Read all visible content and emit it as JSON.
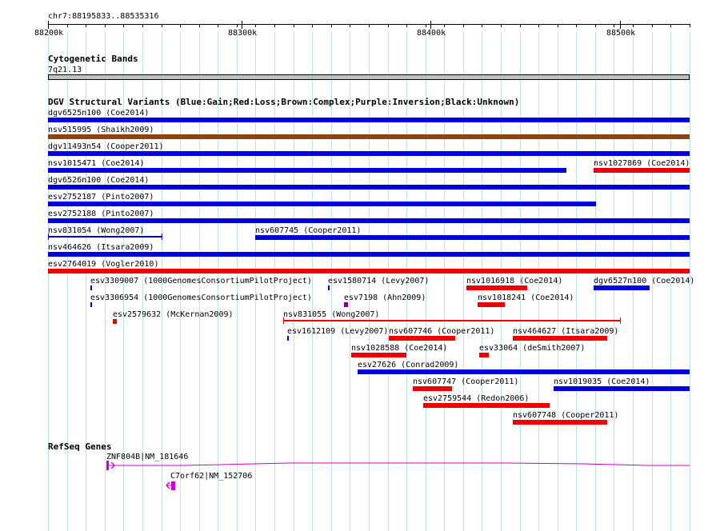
{
  "locus": "chr7:88195833..88535316",
  "ruler": {
    "labels": [
      "88200k",
      "88300k",
      "88400k",
      "88500k"
    ]
  },
  "cytoband_track": {
    "title": "Cytogenetic Bands",
    "band_label": "7q21.13"
  },
  "dgv_track": {
    "title": "DGV Structural Variants (Blue:Gain;Red:Loss;Brown:Complex;Purple:Inversion;Black:Unknown)",
    "colors": {
      "gain": "#0000dd",
      "loss": "#ee0000",
      "complex": "#8b4513",
      "inversion": "#800080",
      "unknown": "#000000"
    },
    "features": [
      {
        "label": "dgv6525n100 (Coe2014)",
        "type": "gain"
      },
      {
        "label": "nsv515995 (Shaikh2009)",
        "type": "complex"
      },
      {
        "label": "dgv11493n54 (Cooper2011)",
        "type": "gain"
      },
      {
        "label": "nsv1015471 (Coe2014)",
        "type": "gain"
      },
      {
        "label": "nsv1027869 (Coe2014)",
        "type": "loss"
      },
      {
        "label": "dgv6526n100 (Coe2014)",
        "type": "gain"
      },
      {
        "label": "esv2752187 (Pinto2007)",
        "type": "gain"
      },
      {
        "label": "esv2752188 (Pinto2007)",
        "type": "gain"
      },
      {
        "label": "nsv831054 (Wong2007)",
        "type": "gain"
      },
      {
        "label": "nsv607745 (Cooper2011)",
        "type": "gain"
      },
      {
        "label": "nsv464626 (Itsara2009)",
        "type": "gain"
      },
      {
        "label": "esv2764019 (Vogler2010)",
        "type": "loss"
      },
      {
        "label": "esv3309007 (1000GenomesConsortiumPilotProject)",
        "type": "gain"
      },
      {
        "label": "esv1580714 (Levy2007)",
        "type": "gain"
      },
      {
        "label": "nsv1016918 (Coe2014)",
        "type": "loss"
      },
      {
        "label": "dgv6527n100 (Coe2014)",
        "type": "gain"
      },
      {
        "label": "esv3306954 (1000GenomesConsortiumPilotProject)",
        "type": "gain"
      },
      {
        "label": "esv7198 (Ahn2009)",
        "type": "inversion"
      },
      {
        "label": "nsv1018241 (Coe2014)",
        "type": "loss"
      },
      {
        "label": "esv2579632 (McKernan2009)",
        "type": "loss"
      },
      {
        "label": "nsv831055 (Wong2007)",
        "type": "loss"
      },
      {
        "label": "esv1612109 (Levy2007)",
        "type": "gain"
      },
      {
        "label": "nsv607746 (Cooper2011)",
        "type": "loss"
      },
      {
        "label": "nsv464627 (Itsara2009)",
        "type": "loss"
      },
      {
        "label": "nsv1028588 (Coe2014)",
        "type": "loss"
      },
      {
        "label": "esv33064 (deSmith2007)",
        "type": "loss"
      },
      {
        "label": "esv27626 (Conrad2009)",
        "type": "gain"
      },
      {
        "label": "nsv607747 (Cooper2011)",
        "type": "loss"
      },
      {
        "label": "nsv1019035 (Coe2014)",
        "type": "gain"
      },
      {
        "label": "esv2759544 (Redon2006)",
        "type": "loss"
      },
      {
        "label": "nsv607748 (Cooper2011)",
        "type": "loss"
      }
    ]
  },
  "refseq_track": {
    "title": "RefSeq Genes",
    "color": "#cc00cc",
    "genes": [
      {
        "label": "ZNF804B|NM_181646",
        "strand": "+"
      },
      {
        "label": "C7orf62|NM_152706",
        "strand": "-"
      }
    ]
  }
}
